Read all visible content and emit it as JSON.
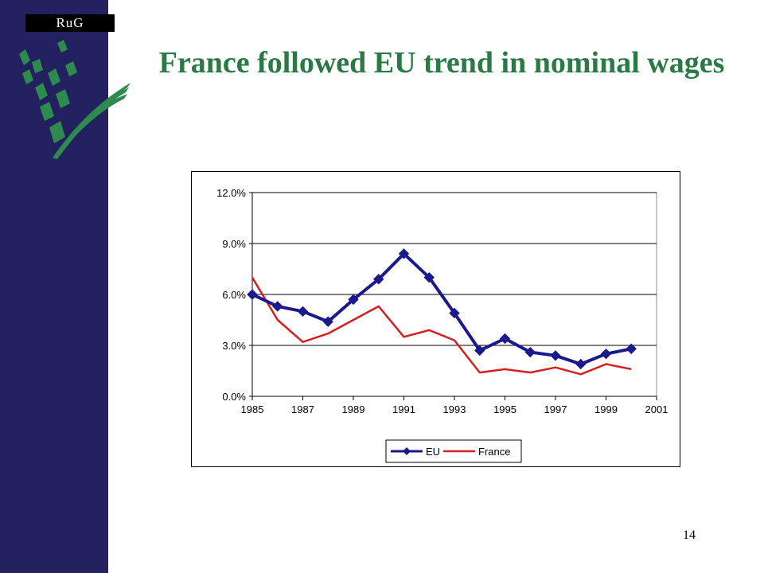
{
  "logo": {
    "text": "RuG"
  },
  "slide": {
    "title": "France followed EU trend in nominal wages",
    "page_number": "14"
  },
  "colors": {
    "sidebar": "#23205f",
    "title": "#2b7a45",
    "eu_series": "#1a1a8c",
    "france_series": "#d42020"
  },
  "chart_data": {
    "type": "line",
    "title": "",
    "xlabel": "",
    "ylabel": "",
    "xlim": [
      1985,
      2001
    ],
    "ylim": [
      0,
      12
    ],
    "x_ticks": [
      1985,
      1987,
      1989,
      1991,
      1993,
      1995,
      1997,
      1999,
      2001
    ],
    "x_tick_labels": [
      "1985",
      "1987",
      "1989",
      "1991",
      "1993",
      "1995",
      "1997",
      "1999",
      "2001"
    ],
    "y_ticks": [
      0,
      3,
      6,
      9,
      12
    ],
    "y_tick_labels": [
      "0.0%",
      "3.0%",
      "6.0%",
      "9.0%",
      "12.0%"
    ],
    "grid": "horizontal",
    "legend": "bottom",
    "series": [
      {
        "name": "EU",
        "color": "#1a1a8c",
        "marker": "diamond",
        "x": [
          1985,
          1986,
          1987,
          1988,
          1989,
          1990,
          1991,
          1992,
          1993,
          1994,
          1995,
          1996,
          1997,
          1998,
          1999,
          2000
        ],
        "values": [
          6.0,
          5.3,
          5.0,
          4.4,
          5.7,
          6.9,
          8.4,
          7.0,
          4.9,
          2.7,
          3.4,
          2.6,
          2.4,
          1.9,
          2.5,
          2.8
        ]
      },
      {
        "name": "France",
        "color": "#d42020",
        "marker": "none",
        "x": [
          1985,
          1986,
          1987,
          1988,
          1989,
          1990,
          1991,
          1992,
          1993,
          1994,
          1995,
          1996,
          1997,
          1998,
          1999,
          2000
        ],
        "values": [
          7.0,
          4.5,
          3.2,
          3.7,
          4.5,
          5.3,
          3.5,
          3.9,
          3.3,
          1.4,
          1.6,
          1.4,
          1.7,
          1.3,
          1.9,
          1.6
        ]
      }
    ]
  }
}
